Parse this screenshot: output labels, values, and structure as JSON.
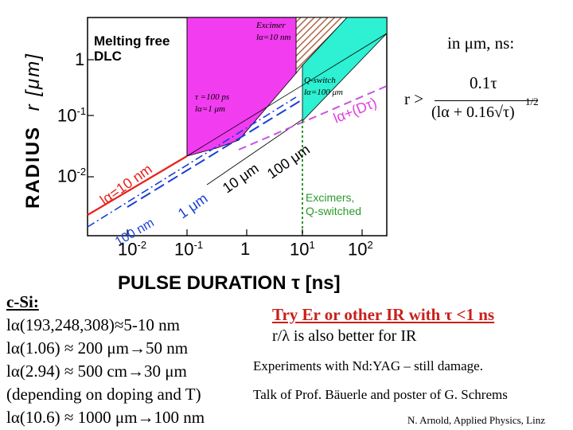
{
  "header": {
    "units_note": "in μm, ns:",
    "formula": {
      "lhs": "r >",
      "numerator": "0.1τ",
      "denominator": "(lα + 0.16√τ)",
      "exponent": "1/2"
    }
  },
  "chart_data": {
    "type": "area",
    "xlabel": "PULSE DURATION τ [ns]",
    "ylabel_letters": [
      "R",
      "A",
      "D",
      "I",
      "U",
      "S"
    ],
    "ylabel_unit": "r [μm]",
    "x_ticks": [
      "10-2",
      "10-1",
      "1",
      "101",
      "102"
    ],
    "y_ticks": [
      "1",
      "10-1",
      "10-2"
    ],
    "regions": [
      {
        "name": "Melting free DLC",
        "lines": [
          "Melting free",
          "DLC"
        ]
      },
      {
        "name": "Excimer",
        "label": "Excimer",
        "sublabel": "lα=10 nm"
      },
      {
        "name": "ps region",
        "label": "τ =100 ps",
        "sublabel": "lα=1 μm"
      },
      {
        "name": "Q-switch",
        "label": "Q-switch",
        "sublabel": "lα=100 μm"
      },
      {
        "name": "Excimers, Q-switched",
        "lines": [
          "Excimers,",
          "Q-switched"
        ]
      }
    ],
    "curve_labels": {
      "curve_main": "lα+(Dτ)",
      "red_line": "lα=10 nm",
      "blue_1um": "1 μm",
      "blue_10um": "10 μm",
      "black_100um": "100 μm",
      "blue_100nm": "100 nm"
    }
  },
  "left_block": {
    "title": "c-Si:",
    "lines": [
      "lα(193,248,308)≈5-10 nm",
      "lα(1.06) ≈ 200 μm→50 nm",
      "lα(2.94) ≈ 500 cm→30 μm",
      "(depending on doping and T)",
      "lα(10.6) ≈ 1000 μm→100 nm"
    ]
  },
  "right_block": {
    "headline": "Try Er or other IR with τ <1 ns",
    "line2": "r/λ is also better for IR",
    "line3": "Experiments with Nd:YAG – still damage.",
    "line4": "Talk of Prof. Bäuerle and poster of G. Schrems",
    "footer": "N. Arnold, Applied Physics, Linz"
  },
  "colors": {
    "magenta_fill": "#f23cf0",
    "cyan_fill": "#2ef0d2",
    "brown_hatch": "#b06a4a",
    "red_line": "#e8201c",
    "blue_line": "#1a3fd6",
    "green_line": "#2a9a2a",
    "purple_dash": "#c855e0",
    "headline_red": "#c8201c"
  }
}
